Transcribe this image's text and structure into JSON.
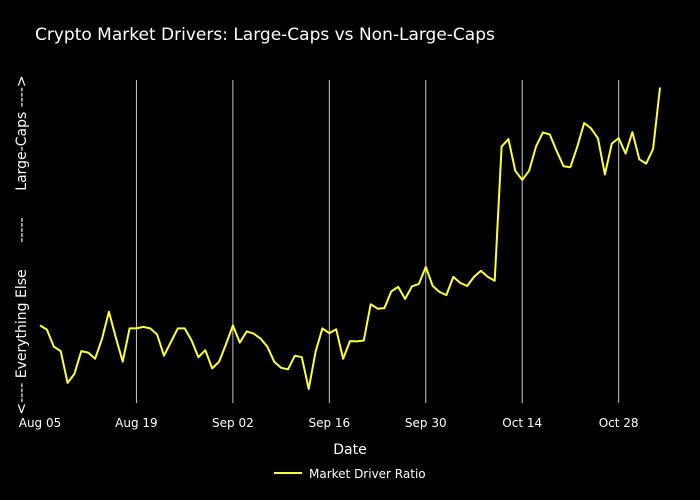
{
  "chart_data": {
    "type": "line",
    "title": "Crypto Market Drivers: Large-Caps vs Non-Large-Caps",
    "xlabel": "Date",
    "ylabel": "<---- Everything Else      -----      Large-Caps ---->",
    "x_ticks": [
      "Aug 05",
      "Aug 19",
      "Sep 02",
      "Sep 16",
      "Sep 30",
      "Oct 14",
      "Oct 28"
    ],
    "grid": "vertical",
    "legend_position": "bottom-center",
    "line_color": "#ffff33",
    "ylim": [
      0,
      1
    ],
    "series": [
      {
        "name": "Market Driver Ratio",
        "start": "Aug 05",
        "step_days": 1,
        "values": [
          0.21,
          0.196,
          0.14,
          0.125,
          0.02,
          0.05,
          0.125,
          0.12,
          0.1,
          0.165,
          0.255,
          0.17,
          0.09,
          0.2,
          0.2,
          0.205,
          0.2,
          0.18,
          0.11,
          0.155,
          0.2,
          0.2,
          0.16,
          0.105,
          0.128,
          0.068,
          0.09,
          0.148,
          0.21,
          0.153,
          0.19,
          0.183,
          0.167,
          0.14,
          0.09,
          0.07,
          0.065,
          0.11,
          0.105,
          0.0,
          0.123,
          0.2,
          0.184,
          0.197,
          0.1,
          0.158,
          0.157,
          0.16,
          0.28,
          0.265,
          0.267,
          0.322,
          0.337,
          0.297,
          0.339,
          0.347,
          0.403,
          0.34,
          0.32,
          0.31,
          0.37,
          0.35,
          0.34,
          0.37,
          0.39,
          0.37,
          0.357,
          0.8,
          0.825,
          0.72,
          0.69,
          0.72,
          0.8,
          0.847,
          0.84,
          0.785,
          0.735,
          0.732,
          0.8,
          0.878,
          0.86,
          0.827,
          0.708,
          0.81,
          0.828,
          0.777,
          0.848,
          0.758,
          0.744,
          0.792,
          0.995
        ]
      }
    ]
  }
}
